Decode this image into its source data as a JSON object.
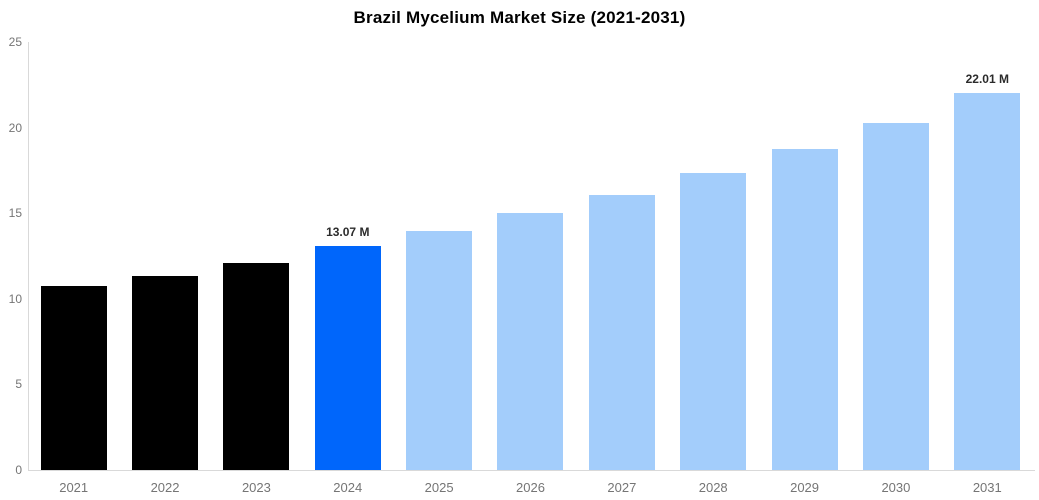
{
  "chart": {
    "title": "Brazil Mycelium Market Size (2021-2031)"
  },
  "chart_data": {
    "type": "bar",
    "title": "Brazil Mycelium Market Size (2021-2031)",
    "categories": [
      "2021",
      "2022",
      "2023",
      "2024",
      "2025",
      "2026",
      "2027",
      "2028",
      "2029",
      "2030",
      "2031"
    ],
    "values": [
      10.72,
      11.35,
      12.12,
      13.07,
      13.99,
      15.03,
      16.08,
      17.37,
      18.76,
      20.28,
      22.01
    ],
    "data_labels": [
      null,
      null,
      null,
      "13.07 M",
      null,
      null,
      null,
      null,
      null,
      null,
      "22.01 M"
    ],
    "bar_colors": [
      "#000000",
      "#000000",
      "#000000",
      "#0066fb",
      "#a3cdfb",
      "#a3cdfb",
      "#a3cdfb",
      "#a3cdfb",
      "#a3cdfb",
      "#a3cdfb",
      "#a3cdfb"
    ],
    "colors": {
      "historical": "#000000",
      "highlight": "#0066fb",
      "forecast": "#a3cdfb",
      "axis_line": "#d9d9d9",
      "tick_label": "#757575",
      "value_label": "#2b2b2b"
    },
    "xlabel": "",
    "ylabel": "",
    "ylim": [
      0,
      25
    ],
    "yticks": [
      0,
      5,
      10,
      15,
      20,
      25
    ],
    "grid": false,
    "legend": false
  }
}
